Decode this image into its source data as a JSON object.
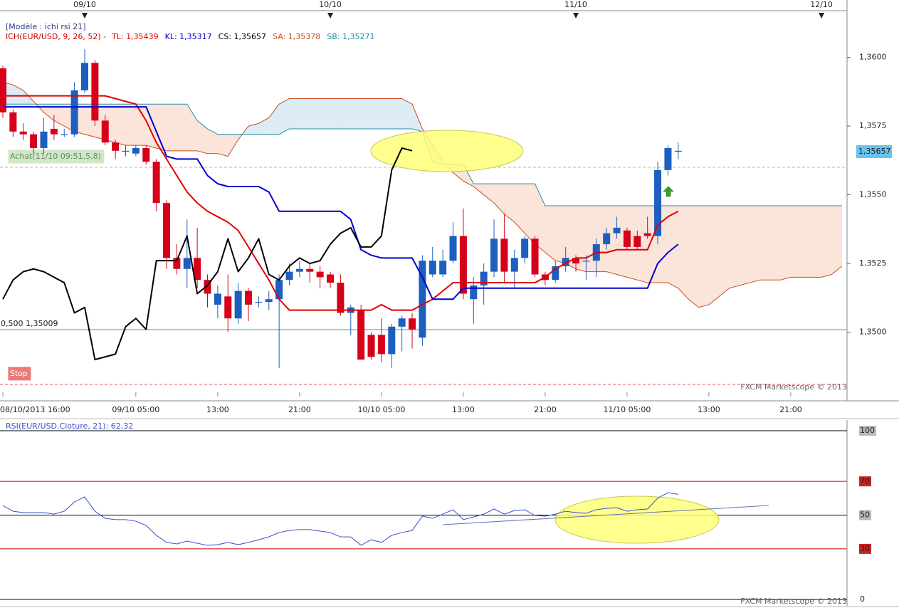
{
  "chart_data": [
    {
      "type": "candlestick",
      "title": "[Modèle : ichi rsi 21]",
      "subtitle": "ICH(EUR/USD, 9, 26, 52) -",
      "subtitle_color": "#d00000",
      "footer": "FXCM Marketscope © 2013",
      "categories": [
        "08/10/2013 16:00",
        null,
        null,
        null,
        null,
        null,
        null,
        null,
        null,
        null,
        null,
        null,
        null,
        "09/10 05:00",
        null,
        null,
        null,
        null,
        null,
        null,
        null,
        "13:00",
        null,
        null,
        null,
        null,
        null,
        null,
        null,
        "21:00",
        null,
        null,
        null,
        null,
        null,
        null,
        null,
        "10/10 05:00",
        null,
        null,
        null,
        null,
        null,
        null,
        null,
        "13:00",
        null,
        null,
        null,
        null,
        null,
        null,
        null,
        "21:00",
        null,
        null,
        null,
        null,
        null,
        null,
        null,
        "11/10 05:00",
        null,
        null,
        null,
        null,
        null,
        null,
        null,
        "13:00",
        null,
        null,
        null,
        null,
        null,
        null,
        null,
        "21:00",
        null,
        null,
        null,
        null,
        null
      ],
      "day_ticks": [
        {
          "value": 8,
          "label": "09/10"
        },
        {
          "value": 32,
          "label": "10/10"
        },
        {
          "value": 56,
          "label": "11/10"
        },
        {
          "value": 80,
          "label": "12/10"
        }
      ],
      "open": [
        1.3596,
        1.358,
        1.3573,
        1.3572,
        1.3567,
        1.3574,
        1.3572,
        1.3572,
        1.3588,
        1.3598,
        1.3577,
        1.3569,
        1.3566,
        1.3565,
        1.3567,
        1.3562,
        1.3547,
        1.3527,
        1.3523,
        1.3527,
        1.3519,
        1.351,
        1.3513,
        1.3505,
        1.3515,
        1.3511,
        1.3511,
        1.3512,
        1.3519,
        1.3522,
        1.3523,
        1.3522,
        1.3521,
        1.3518,
        1.3507,
        1.3508,
        1.3499,
        1.3499,
        1.3492,
        1.3502,
        1.3505,
        1.3498,
        1.3521,
        1.3521,
        1.3526,
        1.3535,
        1.3512,
        1.3517,
        1.3522,
        1.3534,
        1.3522,
        1.3527,
        1.3534,
        1.3521,
        1.3519,
        1.3524,
        1.3527,
        1.3526,
        1.3526,
        1.3532,
        1.3536,
        1.3537,
        1.3535,
        1.3536,
        1.3535,
        1.3559,
        1.3566,
        null,
        null,
        null,
        null,
        null,
        null,
        null,
        null,
        null,
        null,
        null,
        null,
        null,
        null,
        null,
        null
      ],
      "high": [
        1.3597,
        1.3581,
        1.3576,
        1.3573,
        1.3578,
        1.3579,
        1.3574,
        1.3591,
        1.3603,
        1.3599,
        1.3579,
        1.357,
        1.3568,
        1.3568,
        1.3568,
        1.3563,
        1.3548,
        1.3532,
        1.3541,
        1.3538,
        1.3521,
        1.3517,
        1.3521,
        1.3518,
        1.3516,
        1.3513,
        1.3515,
        1.3521,
        1.3525,
        1.3526,
        1.3525,
        1.3524,
        1.3522,
        1.3521,
        1.351,
        1.351,
        1.35,
        1.3505,
        1.3503,
        1.3506,
        1.3507,
        1.3528,
        1.3531,
        1.353,
        1.354,
        1.3545,
        1.352,
        1.3525,
        1.3541,
        1.3543,
        1.353,
        1.3535,
        1.3535,
        1.3522,
        1.3526,
        1.3531,
        1.3528,
        1.3528,
        1.3534,
        1.3538,
        1.3542,
        1.3538,
        1.3537,
        1.3542,
        1.3562,
        1.3568,
        1.3569,
        null,
        null,
        null,
        null,
        null,
        null,
        null,
        null,
        null,
        null,
        null,
        null,
        null,
        null,
        null,
        null
      ],
      "low": [
        1.3578,
        1.3571,
        1.357,
        1.3565,
        1.3565,
        1.357,
        1.3571,
        1.3571,
        1.3587,
        1.3575,
        1.3568,
        1.3563,
        1.3564,
        1.3564,
        1.3561,
        1.3544,
        1.3523,
        1.3521,
        1.3516,
        1.3516,
        1.3509,
        1.3505,
        1.35,
        1.3503,
        1.3504,
        1.3509,
        1.3508,
        1.3487,
        1.3517,
        1.352,
        1.3518,
        1.3516,
        1.3516,
        1.3506,
        1.3499,
        1.349,
        1.349,
        1.3489,
        1.3487,
        1.3493,
        1.3494,
        1.3495,
        1.352,
        1.352,
        1.3525,
        1.3512,
        1.3503,
        1.351,
        1.352,
        1.3518,
        1.3516,
        1.3525,
        1.352,
        1.3517,
        1.3518,
        1.3522,
        1.3522,
        1.3519,
        1.352,
        1.353,
        1.3534,
        1.353,
        1.353,
        1.3534,
        1.3532,
        1.3557,
        1.3563,
        null,
        null,
        null,
        null,
        null,
        null,
        null,
        null,
        null,
        null,
        null,
        null,
        null,
        null,
        null,
        null
      ],
      "close": [
        1.358,
        1.3573,
        1.3572,
        1.3567,
        1.3573,
        1.3572,
        1.3572,
        1.3588,
        1.3598,
        1.3577,
        1.3569,
        1.3566,
        1.3566,
        1.3567,
        1.3562,
        1.3547,
        1.3527,
        1.3523,
        1.3527,
        1.3519,
        1.3514,
        1.3514,
        1.3505,
        1.3515,
        1.351,
        1.3511,
        1.3512,
        1.3519,
        1.3522,
        1.3523,
        1.3522,
        1.352,
        1.3518,
        1.3507,
        1.3509,
        1.349,
        1.3491,
        1.3492,
        1.3502,
        1.3505,
        1.3501,
        1.3526,
        1.3526,
        1.3526,
        1.3535,
        1.3514,
        1.3517,
        1.3522,
        1.3534,
        1.3522,
        1.3527,
        1.3534,
        1.3521,
        1.3519,
        1.3524,
        1.3527,
        1.3525,
        1.3526,
        1.3532,
        1.3536,
        1.3538,
        1.3531,
        1.3531,
        1.3535,
        1.3559,
        1.3567,
        1.3566,
        null,
        null,
        null,
        null,
        null,
        null,
        null,
        null,
        null,
        null,
        null,
        null,
        null,
        null,
        null,
        null
      ],
      "up_color": "#1c5fbf",
      "down_color": "#d7001a",
      "series": [
        {
          "name": "TL: 1,35439",
          "color": "#e00000",
          "values": [
            1.3586,
            1.3586,
            1.3586,
            1.3586,
            1.3586,
            1.3586,
            1.3586,
            1.3586,
            1.3586,
            1.3586,
            1.3586,
            1.3585,
            1.3584,
            1.3583,
            1.3577,
            1.3569,
            1.3563,
            1.3557,
            1.3551,
            1.3547,
            1.3544,
            1.3542,
            1.354,
            1.3537,
            1.3531,
            1.3525,
            1.3519,
            1.3512,
            1.3508,
            1.3508,
            1.3508,
            1.3508,
            1.3508,
            1.3508,
            1.3508,
            1.3508,
            1.3508,
            1.351,
            1.3508,
            1.3508,
            1.3508,
            1.351,
            1.3512,
            1.3515,
            1.3518,
            1.3518,
            1.3518,
            1.3518,
            1.3518,
            1.3518,
            1.3518,
            1.3518,
            1.3518,
            1.352,
            1.3523,
            1.3525,
            1.3527,
            1.3527,
            1.3529,
            1.3529,
            1.353,
            1.353,
            1.353,
            1.353,
            1.3539,
            1.3542,
            1.3544,
            null,
            null,
            null,
            null,
            null,
            null,
            null,
            null,
            null,
            null,
            null,
            null,
            null,
            null,
            null,
            null
          ]
        },
        {
          "name": "KL: 1,35317",
          "color": "#0000d0",
          "values": [
            1.3582,
            1.3582,
            1.3582,
            1.3582,
            1.3582,
            1.3582,
            1.3582,
            1.3582,
            1.3582,
            1.3582,
            1.3582,
            1.3582,
            1.3582,
            1.3582,
            1.3582,
            1.3573,
            1.3564,
            1.3563,
            1.3563,
            1.3563,
            1.3557,
            1.3554,
            1.3553,
            1.3553,
            1.3553,
            1.3553,
            1.3551,
            1.3544,
            1.3544,
            1.3544,
            1.3544,
            1.3544,
            1.3544,
            1.3544,
            1.3541,
            1.353,
            1.3528,
            1.3527,
            1.3527,
            1.3527,
            1.3527,
            1.352,
            1.3512,
            1.3512,
            1.3512,
            1.3516,
            1.3516,
            1.3516,
            1.3516,
            1.3516,
            1.3516,
            1.3516,
            1.3516,
            1.3516,
            1.3516,
            1.3516,
            1.3516,
            1.3516,
            1.3516,
            1.3516,
            1.3516,
            1.3516,
            1.3516,
            1.3516,
            1.3525,
            1.3529,
            1.3532,
            null,
            null,
            null,
            null,
            null,
            null,
            null,
            null,
            null,
            null,
            null,
            null,
            null,
            null,
            null,
            null
          ]
        },
        {
          "name": "CS: 1,35657",
          "color": "#000000",
          "values": [
            1.3512,
            1.3519,
            1.3522,
            1.3523,
            1.3522,
            1.352,
            1.3518,
            1.3507,
            1.3509,
            1.349,
            1.3491,
            1.3492,
            1.3502,
            1.3505,
            1.3501,
            1.3526,
            1.3526,
            1.3526,
            1.3535,
            1.3514,
            1.3517,
            1.3522,
            1.3534,
            1.3522,
            1.3527,
            1.3534,
            1.3521,
            1.3519,
            1.3524,
            1.3527,
            1.3525,
            1.3526,
            1.3532,
            1.3536,
            1.3538,
            1.3531,
            1.3531,
            1.3535,
            1.3559,
            1.3567,
            1.3566,
            null,
            null,
            null,
            null,
            null,
            null,
            null,
            null,
            null,
            null,
            null,
            null,
            null,
            null,
            null,
            null,
            null,
            null,
            null,
            null,
            null,
            null,
            null,
            null,
            null,
            null,
            null,
            null,
            null,
            null,
            null,
            null,
            null,
            null,
            null,
            null,
            null,
            null,
            null,
            null,
            null,
            null
          ]
        },
        {
          "name": "SA: 1,35378",
          "color": "#c8501e",
          "values": [
            1.3591,
            1.359,
            1.3588,
            1.3584,
            1.358,
            1.3577,
            1.3575,
            1.3573,
            1.3572,
            1.3571,
            1.357,
            1.3569,
            1.3568,
            1.3568,
            1.3568,
            1.3567,
            1.3566,
            1.3566,
            1.3566,
            1.3566,
            1.3565,
            1.3565,
            1.3564,
            1.357,
            1.3575,
            1.3576,
            1.3578,
            1.3583,
            1.3585,
            1.3585,
            1.3585,
            1.3585,
            1.3585,
            1.3585,
            1.3585,
            1.3585,
            1.3585,
            1.3585,
            1.3585,
            1.3585,
            1.3583,
            1.3574,
            1.3568,
            1.3562,
            1.3558,
            1.3555,
            1.3553,
            1.355,
            1.3547,
            1.3543,
            1.354,
            1.3536,
            1.3532,
            1.3529,
            1.3526,
            1.3525,
            1.3523,
            1.3522,
            1.3522,
            1.3522,
            1.3521,
            1.352,
            1.3519,
            1.3518,
            1.3518,
            1.3518,
            1.3516,
            1.3512,
            1.3509,
            1.351,
            1.3513,
            1.3516,
            1.3517,
            1.3518,
            1.3519,
            1.3519,
            1.3519,
            1.352,
            1.352,
            1.352,
            1.352,
            1.3521,
            1.3524
          ]
        },
        {
          "name": "SB: 1,35271",
          "color": "#2090a8",
          "values": [
            1.3583,
            1.3583,
            1.3583,
            1.3583,
            1.3583,
            1.3583,
            1.3583,
            1.3583,
            1.3583,
            1.3583,
            1.3583,
            1.3583,
            1.3583,
            1.3583,
            1.3583,
            1.3583,
            1.3583,
            1.3583,
            1.3583,
            1.3577,
            1.3574,
            1.3572,
            1.3572,
            1.3572,
            1.3572,
            1.3572,
            1.3572,
            1.3572,
            1.3574,
            1.3574,
            1.3574,
            1.3574,
            1.3574,
            1.3574,
            1.3574,
            1.3574,
            1.3574,
            1.3574,
            1.3574,
            1.3574,
            1.3574,
            1.3573,
            1.3562,
            1.3561,
            1.3561,
            1.3561,
            1.3554,
            1.3554,
            1.3554,
            1.3554,
            1.3554,
            1.3554,
            1.3554,
            1.3546,
            1.3546,
            1.3546,
            1.3546,
            1.3546,
            1.3546,
            1.3546,
            1.3546,
            1.3546,
            1.3546,
            1.3546,
            1.3546,
            1.3546,
            1.3546,
            1.3546,
            1.3546,
            1.3546,
            1.3546,
            1.3546,
            1.3546,
            1.3546,
            1.3546,
            1.3546,
            1.3546,
            1.3546,
            1.3546,
            1.3546,
            1.3546,
            1.3546,
            1.3546
          ]
        }
      ],
      "cloud_colors": [
        "#dcebf4",
        "#fbe4da"
      ],
      "ylim": [
        1.3475,
        1.3617
      ],
      "yticks": [
        {
          "value": 1.35,
          "label": "1,3500"
        },
        {
          "value": 1.3525,
          "label": "1,3525"
        },
        {
          "value": 1.355,
          "label": "1,3550"
        },
        {
          "value": 1.3575,
          "label": "1,3575"
        },
        {
          "value": 1.36,
          "label": "1,3600"
        }
      ],
      "last_price": {
        "value": 1.35657,
        "label": "1,35657"
      },
      "last_price_color": "#66c4ee",
      "levels": [
        {
          "label": "Achat(11/10 09:51,5,8)",
          "value": 1.356,
          "color": "#d4b27a",
          "label_fill": "#cfe8c8",
          "label_color": "#6a8a60",
          "dashed": true
        },
        {
          "label": "0,500 1,35009",
          "value": 1.35009,
          "color": "#3aa0a8",
          "dashed": false
        },
        {
          "label": "Stop",
          "value": 1.3481,
          "color": "#e05050",
          "label_fill": "#e87a7a",
          "label_color": "#ffffff",
          "dashed": true
        }
      ]
    },
    {
      "type": "line",
      "title": "RSI(EUR/USD.Cloture, 21): 62,32",
      "footer": "FXCM Marketscope © 2013",
      "color": "#3a4fd0",
      "values": [
        55.7,
        52.3,
        51.5,
        51.5,
        51.5,
        50.6,
        52.3,
        57.8,
        60.8,
        52.3,
        48.1,
        47.3,
        47.3,
        46.4,
        43.9,
        38,
        33.8,
        32.9,
        34.6,
        33.3,
        32.1,
        32.5,
        33.8,
        32.5,
        33.8,
        35.4,
        37.1,
        39.7,
        40.9,
        41.4,
        41.4,
        40.5,
        39.7,
        37.1,
        37.1,
        32.1,
        35.4,
        33.8,
        38,
        39.7,
        40.9,
        49.4,
        48.1,
        50.6,
        53.2,
        47.3,
        48.9,
        50.6,
        53.6,
        50.6,
        52.7,
        53.2,
        49.8,
        49.4,
        50.6,
        52.3,
        51.5,
        51.1,
        53.2,
        54,
        54.4,
        52.3,
        53.2,
        53.6,
        60.1,
        63.3,
        62.32,
        null,
        null,
        null,
        null,
        null,
        null,
        null,
        null,
        null,
        null,
        null,
        null,
        null,
        null,
        null,
        null
      ],
      "ylim": [
        -3.8,
        103.4
      ],
      "yticks": [
        0,
        30,
        50,
        70,
        100
      ],
      "tick_colors": [
        "#000000",
        "#cc0000",
        "#000000",
        "#cc0000",
        "#000000"
      ],
      "tick_label_fills": [
        "#ffffff",
        "#cc2020",
        "#b8b8b8",
        "#cc2020",
        "#b8b8b8"
      ]
    }
  ]
}
